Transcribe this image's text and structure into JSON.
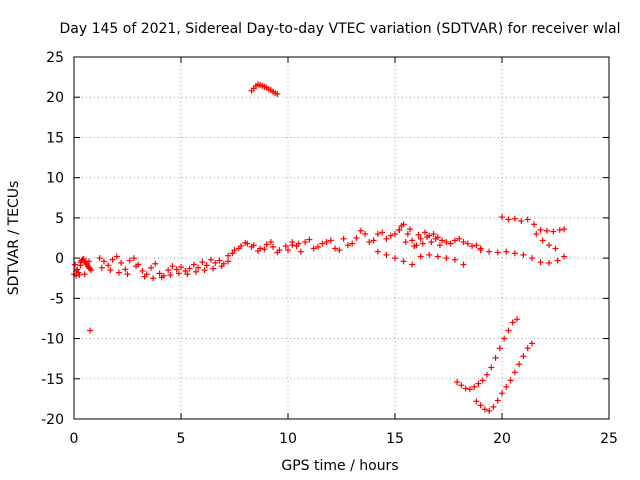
{
  "chart_data": {
    "type": "scatter",
    "title": "Day 145 of 2021, Sidereal Day-to-day VTEC variation (SDTVAR) for receiver wlal",
    "xlabel": "GPS time / hours",
    "ylabel": "SDTVAR / TECUs",
    "xlim": [
      0,
      25
    ],
    "ylim": [
      -20,
      25
    ],
    "xticks": [
      0,
      5,
      10,
      15,
      20,
      25
    ],
    "yticks": [
      -20,
      -15,
      -10,
      -5,
      0,
      5,
      10,
      15,
      20,
      25
    ],
    "grid": true,
    "marker": "+",
    "color": "#ff0000",
    "series": [
      {
        "name": "early-cluster",
        "x": [
          0.0,
          0.1,
          0.2,
          0.3,
          0.4,
          0.5,
          0.6,
          0.7,
          0.8,
          0.05,
          0.15,
          0.25,
          0.35,
          0.45,
          0.55,
          0.65,
          0.75,
          0.1,
          0.3,
          0.5,
          0.7
        ],
        "y": [
          -2.0,
          -2.2,
          -1.8,
          -0.5,
          -0.2,
          -0.4,
          -0.8,
          -1.2,
          -1.5,
          -0.8,
          -1.4,
          -2.1,
          -0.3,
          -0.1,
          -0.6,
          -1.0,
          -1.3,
          -1.6,
          -0.9,
          -2.0,
          -0.4
        ]
      },
      {
        "name": "isolated-point",
        "x": [
          0.75
        ],
        "y": [
          -9.0
        ]
      },
      {
        "name": "band-0-7h",
        "x": [
          1.2,
          1.4,
          1.6,
          1.8,
          2.0,
          2.2,
          2.4,
          2.6,
          2.8,
          3.0,
          3.2,
          3.4,
          3.6,
          3.8,
          4.0,
          4.2,
          4.4,
          4.6,
          4.8,
          5.0,
          5.2,
          5.4,
          5.6,
          5.8,
          6.0,
          6.2,
          6.4,
          6.6,
          6.8,
          7.0,
          7.2
        ],
        "y": [
          0.0,
          -0.4,
          -0.9,
          -0.2,
          0.2,
          -0.6,
          -1.4,
          -0.3,
          0.0,
          -0.8,
          -1.6,
          -2.0,
          -1.2,
          -0.7,
          -1.9,
          -2.2,
          -1.5,
          -1.0,
          -1.4,
          -1.1,
          -1.6,
          -1.3,
          -0.8,
          -1.2,
          -0.5,
          -0.9,
          -0.2,
          -0.6,
          -0.3,
          -0.7,
          -0.4
        ]
      },
      {
        "name": "band-1-7h-lower",
        "x": [
          1.3,
          1.7,
          2.1,
          2.5,
          2.9,
          3.3,
          3.7,
          4.1,
          4.5,
          4.9,
          5.3,
          5.7,
          6.1,
          6.5,
          6.9
        ],
        "y": [
          -1.2,
          -1.5,
          -1.8,
          -2.0,
          -1.0,
          -2.3,
          -2.5,
          -2.4,
          -2.1,
          -1.9,
          -2.0,
          -1.7,
          -1.5,
          -1.3,
          -1.0
        ]
      },
      {
        "name": "band-7-10h",
        "x": [
          7.2,
          7.5,
          7.8,
          8.1,
          8.4,
          8.7,
          9.0,
          9.3,
          9.6,
          9.9,
          10.2,
          10.5,
          7.4,
          7.7,
          8.0,
          8.3,
          8.6,
          8.9,
          9.2,
          9.5
        ],
        "y": [
          0.3,
          1.0,
          1.5,
          1.8,
          1.6,
          1.2,
          1.7,
          1.4,
          1.0,
          1.5,
          2.0,
          1.8,
          0.6,
          1.2,
          1.9,
          1.4,
          0.9,
          1.1,
          2.0,
          0.7
        ]
      },
      {
        "name": "high-arc",
        "x": [
          8.3,
          8.4,
          8.5,
          8.6,
          8.7,
          8.8,
          8.9,
          9.0,
          9.1,
          9.2,
          9.3,
          9.4,
          9.5
        ],
        "y": [
          20.8,
          21.1,
          21.4,
          21.6,
          21.5,
          21.4,
          21.3,
          21.2,
          21.0,
          20.9,
          20.7,
          20.5,
          20.4
        ]
      },
      {
        "name": "band-10-15h",
        "x": [
          10.0,
          10.4,
          10.8,
          11.2,
          11.6,
          12.0,
          12.4,
          12.8,
          13.2,
          13.6,
          14.0,
          14.4,
          14.8,
          15.2,
          10.2,
          10.6,
          11.0,
          11.4,
          11.8,
          12.2,
          12.6,
          13.0,
          13.4,
          13.8,
          14.2,
          14.6,
          15.0
        ],
        "y": [
          1.0,
          1.5,
          2.0,
          1.2,
          1.8,
          2.2,
          1.0,
          1.6,
          2.5,
          3.0,
          2.2,
          3.2,
          2.8,
          3.5,
          1.6,
          0.8,
          2.3,
          1.4,
          2.0,
          1.2,
          2.4,
          1.8,
          3.4,
          2.0,
          3.0,
          2.4,
          3.0
        ]
      },
      {
        "name": "band-15-19h",
        "x": [
          15.2,
          15.4,
          15.6,
          15.8,
          16.0,
          16.2,
          16.4,
          16.6,
          16.8,
          17.0,
          17.2,
          17.4,
          17.6,
          17.8,
          18.0,
          18.2,
          18.4,
          18.6,
          18.8,
          19.0,
          15.3,
          15.5,
          15.7,
          15.9,
          16.1,
          16.3,
          16.5,
          16.7,
          16.9,
          17.1
        ],
        "y": [
          3.5,
          4.2,
          3.0,
          2.2,
          1.6,
          2.4,
          3.2,
          2.8,
          3.0,
          2.6,
          2.2,
          2.0,
          1.8,
          2.2,
          2.4,
          2.0,
          1.8,
          1.5,
          1.6,
          1.2,
          4.0,
          2.0,
          3.6,
          1.5,
          2.9,
          1.8,
          2.6,
          2.0,
          2.4,
          1.6
        ]
      },
      {
        "name": "lower-dip-15-18h",
        "x": [
          14.2,
          14.6,
          15.0,
          15.4,
          15.8,
          16.2,
          16.6,
          17.0,
          17.4,
          17.8,
          18.2
        ],
        "y": [
          0.8,
          0.4,
          0.0,
          -0.4,
          -0.8,
          0.2,
          0.4,
          0.2,
          0.0,
          -0.2,
          -0.8
        ]
      },
      {
        "name": "band-19-23h",
        "x": [
          19.0,
          19.4,
          19.8,
          20.2,
          20.6,
          21.0,
          21.4,
          21.8,
          22.2,
          22.6,
          22.9
        ],
        "y": [
          1.0,
          0.8,
          0.7,
          0.8,
          0.6,
          0.4,
          0.0,
          -0.5,
          -0.6,
          -0.3,
          0.2
        ]
      },
      {
        "name": "upper-arc-20-23h",
        "x": [
          20.0,
          20.3,
          20.6,
          20.9,
          21.2,
          21.5,
          21.8,
          22.1,
          22.4,
          22.7,
          22.9,
          21.6,
          21.9,
          22.2,
          22.5
        ],
        "y": [
          5.1,
          4.8,
          4.9,
          4.6,
          4.8,
          4.2,
          3.5,
          3.4,
          3.3,
          3.5,
          3.6,
          3.0,
          2.2,
          1.6,
          1.2
        ]
      },
      {
        "name": "lower-arc-a",
        "x": [
          17.9,
          18.1,
          18.3,
          18.5,
          18.7,
          18.9,
          19.1,
          19.3,
          19.5,
          19.7,
          19.9,
          20.1,
          20.3,
          20.5,
          20.7
        ],
        "y": [
          -15.4,
          -15.8,
          -16.2,
          -16.3,
          -16.0,
          -15.6,
          -15.2,
          -14.5,
          -13.6,
          -12.4,
          -11.2,
          -10.0,
          -9.0,
          -8.0,
          -7.6
        ]
      },
      {
        "name": "lower-arc-b",
        "x": [
          18.8,
          19.0,
          19.2,
          19.4,
          19.6,
          19.8,
          20.0,
          20.2,
          20.4,
          20.6,
          20.8,
          21.0,
          21.2,
          21.4
        ],
        "y": [
          -17.8,
          -18.3,
          -18.8,
          -19.0,
          -18.5,
          -17.7,
          -16.8,
          -16.0,
          -15.2,
          -14.2,
          -13.2,
          -12.2,
          -11.2,
          -10.6
        ]
      }
    ]
  }
}
